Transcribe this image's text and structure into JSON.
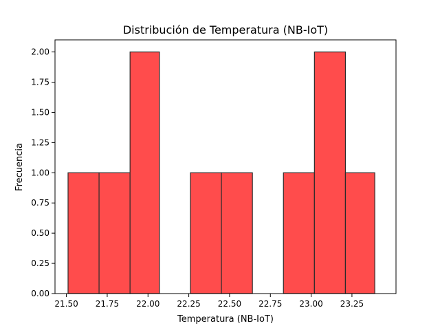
{
  "chart_data": {
    "type": "bar",
    "title": "Distribución de Temperatura (NB-IoT)",
    "xlabel": "Temperatura (NB-IoT)",
    "ylabel": "Frecuencia",
    "xlim": [
      21.43,
      23.52
    ],
    "ylim": [
      0,
      2.1
    ],
    "grid": false,
    "x_ticks": [
      21.5,
      21.75,
      22.0,
      22.25,
      22.5,
      22.75,
      23.0,
      23.25
    ],
    "x_tick_labels": [
      "21.50",
      "21.75",
      "22.00",
      "22.25",
      "22.50",
      "22.75",
      "23.00",
      "23.25"
    ],
    "y_ticks": [
      0.0,
      0.25,
      0.5,
      0.75,
      1.0,
      1.25,
      1.5,
      1.75,
      2.0
    ],
    "y_tick_labels": [
      "0.00",
      "0.25",
      "0.50",
      "0.75",
      "1.00",
      "1.25",
      "1.50",
      "1.75",
      "2.00"
    ],
    "bins": [
      {
        "start": 21.51,
        "end": 21.7,
        "value": 1
      },
      {
        "start": 21.7,
        "end": 21.89,
        "value": 1
      },
      {
        "start": 21.89,
        "end": 22.07,
        "value": 2
      },
      {
        "start": 22.07,
        "end": 22.26,
        "value": 0
      },
      {
        "start": 22.26,
        "end": 22.45,
        "value": 1
      },
      {
        "start": 22.45,
        "end": 22.64,
        "value": 1
      },
      {
        "start": 22.64,
        "end": 22.83,
        "value": 0
      },
      {
        "start": 22.83,
        "end": 23.02,
        "value": 1
      },
      {
        "start": 23.02,
        "end": 23.21,
        "value": 2
      },
      {
        "start": 23.21,
        "end": 23.39,
        "value": 1
      }
    ],
    "bar_color": "#ff4c4c",
    "bar_edge_color": "#2b2b2b"
  }
}
